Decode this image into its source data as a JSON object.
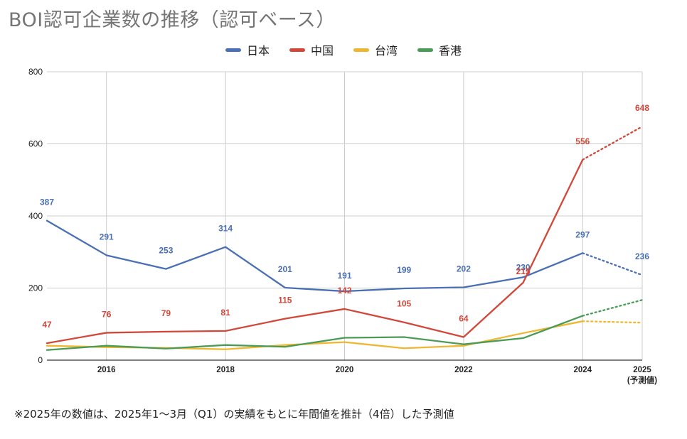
{
  "title": "BOI認可企業数の推移（認可ベース）",
  "footnote": "※2025年の数値は、2025年1～3月（Q1）の実績をもとに年間値を推計（4倍）した予測値",
  "chart_data": {
    "type": "line",
    "title": "BOI認可企業数の推移（認可ベース）",
    "xlabel": "",
    "ylabel": "",
    "x": [
      2015,
      2016,
      2017,
      2018,
      2019,
      2020,
      2021,
      2022,
      2023,
      2024,
      2025
    ],
    "x_tick_labels": [
      {
        "x": 2016,
        "label": "2016"
      },
      {
        "x": 2018,
        "label": "2018"
      },
      {
        "x": 2020,
        "label": "2020"
      },
      {
        "x": 2022,
        "label": "2022"
      },
      {
        "x": 2024,
        "label": "2024"
      },
      {
        "x": 2025,
        "label": "2025",
        "sub": "(予測値)"
      }
    ],
    "y_ticks": [
      0,
      200,
      400,
      600,
      800
    ],
    "ylim": [
      0,
      800
    ],
    "xlim": [
      2015,
      2025
    ],
    "grid": true,
    "legend_position": "top-center",
    "projected_from": 2024,
    "series": [
      {
        "name": "日本",
        "color": "#4a6fb5",
        "values": [
          387,
          291,
          253,
          314,
          201,
          191,
          199,
          202,
          230,
          297,
          236
        ],
        "labels": [
          "387",
          "291",
          "253",
          "314",
          "201",
          "191",
          "199",
          "202",
          "230",
          "297",
          "236"
        ]
      },
      {
        "name": "中国",
        "color": "#d1483a",
        "values": [
          47,
          76,
          79,
          81,
          115,
          142,
          105,
          64,
          215,
          556,
          648
        ],
        "labels": [
          "47",
          "76",
          "79",
          "81",
          "115",
          "142",
          "105",
          "64",
          "215",
          "556",
          "648"
        ]
      },
      {
        "name": "台湾",
        "color": "#efb731",
        "values": [
          40,
          36,
          34,
          30,
          42,
          50,
          33,
          40,
          75,
          108,
          104
        ],
        "labels": []
      },
      {
        "name": "香港",
        "color": "#4a9b55",
        "values": [
          28,
          40,
          32,
          42,
          37,
          62,
          64,
          44,
          61,
          123,
          167
        ],
        "labels": []
      }
    ]
  }
}
